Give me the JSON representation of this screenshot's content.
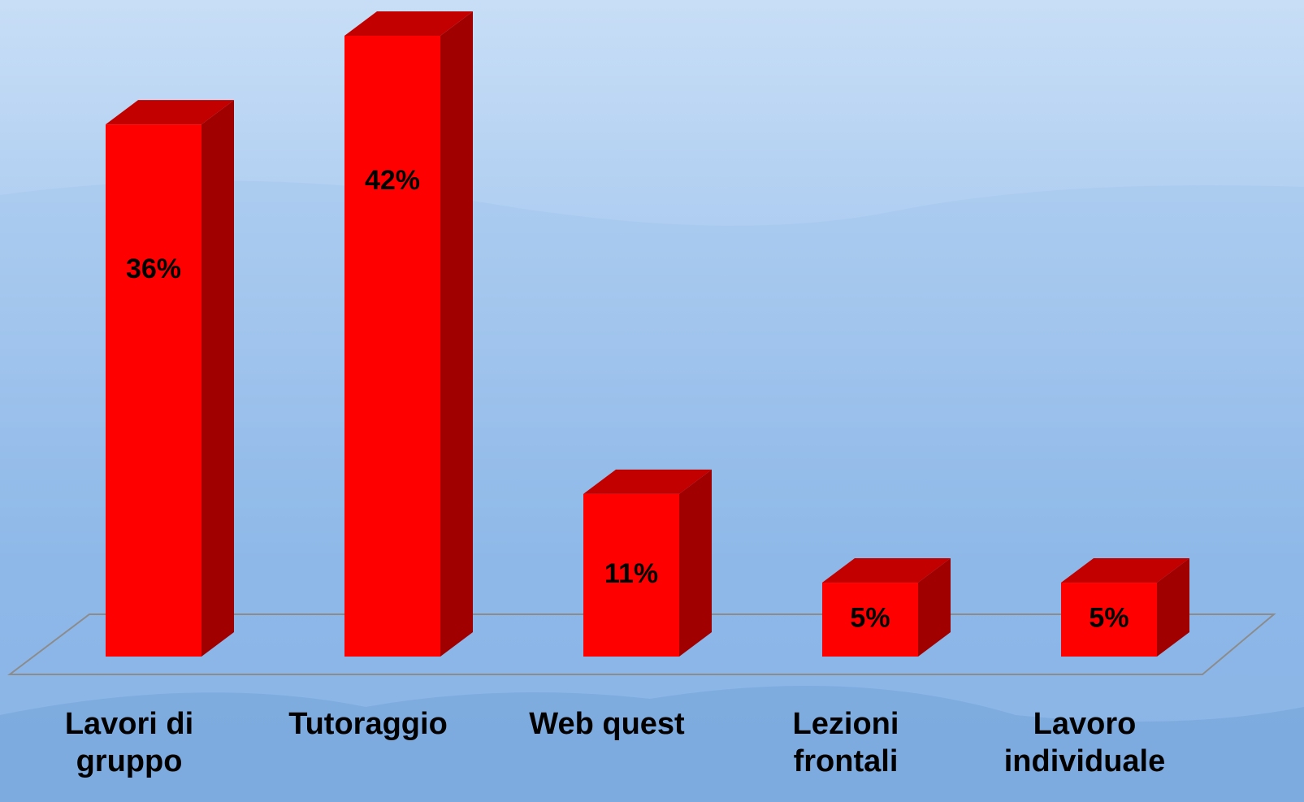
{
  "chart_data": {
    "type": "bar3d",
    "categories": [
      "Lavori di gruppo",
      "Tutoraggio",
      "Web quest",
      "Lezioni frontali",
      "Lavoro individuale"
    ],
    "values": [
      36,
      42,
      11,
      5,
      5
    ],
    "value_labels": [
      "36%",
      "42%",
      "11%",
      "5%",
      "5%"
    ],
    "color": "#ff0000"
  }
}
